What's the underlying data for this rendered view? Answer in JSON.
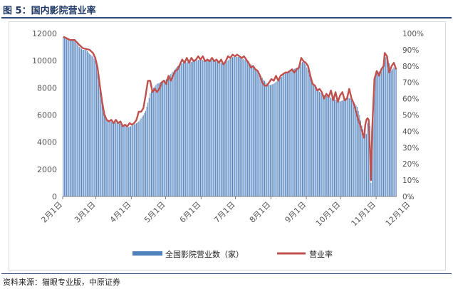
{
  "figure": {
    "title": "图 5：国内影院营业率",
    "source": "资料来源：猫眼专业版，中原证券"
  },
  "colors": {
    "bars": "#4f81bd",
    "line": "#c0504d",
    "axis": "#7f7f7f",
    "title": "#1f3864"
  },
  "chart_data": {
    "type": "bar",
    "x_tick_labels": [
      "2月1日",
      "3月1日",
      "4月1日",
      "5月1日",
      "6月1日",
      "7月1日",
      "8月1日",
      "9月1日",
      "10月1日",
      "11月1日",
      "12月1日"
    ],
    "y_left_ticks": [
      "0",
      "2000",
      "4000",
      "6000",
      "8000",
      "10000",
      "12000"
    ],
    "y_right_ticks": [
      "0%",
      "10%",
      "20%",
      "30%",
      "40%",
      "50%",
      "60%",
      "70%",
      "80%",
      "90%",
      "100%"
    ],
    "ylim_left": [
      0,
      12000
    ],
    "ylim_right": [
      0,
      1
    ],
    "grid": false,
    "legend_position": "bottom",
    "series": [
      {
        "name": "全国影院营业数（家）",
        "type": "bar",
        "axis": "left",
        "points": [
          [
            0,
            11750
          ],
          [
            3,
            11600
          ],
          [
            6,
            11500
          ],
          [
            10,
            11500
          ],
          [
            14,
            11000
          ],
          [
            17,
            10800
          ],
          [
            20,
            10800
          ],
          [
            23,
            10500
          ],
          [
            26,
            10300
          ],
          [
            28,
            10000
          ],
          [
            30,
            9500
          ],
          [
            32,
            8300
          ],
          [
            34,
            7200
          ],
          [
            36,
            6300
          ],
          [
            38,
            5700
          ],
          [
            40,
            5600
          ],
          [
            42,
            5500
          ],
          [
            45,
            5500
          ],
          [
            48,
            5400
          ],
          [
            51,
            5350
          ],
          [
            54,
            5200
          ],
          [
            57,
            5100
          ],
          [
            60,
            5200
          ],
          [
            63,
            5350
          ],
          [
            66,
            5500
          ],
          [
            70,
            6000
          ],
          [
            72,
            6300
          ],
          [
            74,
            6900
          ],
          [
            76,
            7600
          ],
          [
            79,
            8000
          ],
          [
            82,
            8300
          ],
          [
            85,
            8400
          ],
          [
            88,
            8500
          ],
          [
            91,
            8700
          ],
          [
            94,
            9000
          ],
          [
            97,
            9300
          ],
          [
            100,
            9600
          ],
          [
            103,
            9800
          ],
          [
            106,
            9850
          ],
          [
            109,
            9900
          ],
          [
            112,
            9900
          ],
          [
            115,
            10000
          ],
          [
            118,
            10050
          ],
          [
            121,
            10050
          ],
          [
            124,
            10050
          ],
          [
            127,
            10000
          ],
          [
            130,
            10050
          ],
          [
            133,
            9950
          ],
          [
            136,
            9900
          ],
          [
            139,
            9800
          ],
          [
            142,
            9850
          ],
          [
            145,
            10100
          ],
          [
            148,
            10250
          ],
          [
            151,
            10300
          ],
          [
            154,
            10250
          ],
          [
            157,
            10150
          ],
          [
            160,
            10000
          ],
          [
            163,
            9800
          ],
          [
            166,
            9600
          ],
          [
            169,
            9300
          ],
          [
            172,
            9000
          ],
          [
            175,
            8600
          ],
          [
            178,
            8300
          ],
          [
            181,
            8200
          ],
          [
            184,
            8300
          ],
          [
            187,
            8500
          ],
          [
            190,
            8700
          ],
          [
            193,
            9000
          ],
          [
            196,
            9200
          ],
          [
            199,
            9300
          ],
          [
            202,
            9400
          ],
          [
            205,
            9500
          ],
          [
            208,
            9800
          ],
          [
            210,
            10000
          ],
          [
            212,
            9700
          ],
          [
            214,
            9300
          ],
          [
            216,
            8800
          ],
          [
            218,
            8300
          ],
          [
            221,
            8000
          ],
          [
            224,
            7700
          ],
          [
            227,
            7500
          ],
          [
            230,
            7400
          ],
          [
            233,
            7300
          ],
          [
            236,
            7200
          ],
          [
            239,
            7100
          ],
          [
            242,
            7000
          ],
          [
            245,
            7100
          ],
          [
            248,
            7300
          ],
          [
            251,
            7200
          ],
          [
            254,
            6900
          ],
          [
            257,
            6600
          ],
          [
            259,
            6000
          ],
          [
            261,
            5200
          ],
          [
            263,
            4700
          ],
          [
            265,
            4600
          ],
          [
            266,
            5400
          ],
          [
            267,
            5600
          ],
          [
            268,
            5200
          ],
          [
            269,
            1000
          ],
          [
            270,
            4500
          ],
          [
            271,
            7500
          ],
          [
            273,
            9000
          ],
          [
            275,
            9200
          ],
          [
            278,
            9200
          ],
          [
            281,
            10200
          ],
          [
            283,
            10300
          ],
          [
            285,
            9800
          ],
          [
            287,
            9300
          ],
          [
            289,
            9500
          ],
          [
            291,
            9400
          ]
        ]
      },
      {
        "name": "营业率",
        "type": "line",
        "axis": "right",
        "points": [
          [
            0,
            0.98
          ],
          [
            3,
            0.97
          ],
          [
            6,
            0.96
          ],
          [
            10,
            0.96
          ],
          [
            14,
            0.93
          ],
          [
            17,
            0.91
          ],
          [
            20,
            0.905
          ],
          [
            23,
            0.9
          ],
          [
            26,
            0.88
          ],
          [
            28,
            0.85
          ],
          [
            30,
            0.79
          ],
          [
            32,
            0.68
          ],
          [
            34,
            0.58
          ],
          [
            36,
            0.5
          ],
          [
            38,
            0.47
          ],
          [
            40,
            0.46
          ],
          [
            42,
            0.47
          ],
          [
            44,
            0.45
          ],
          [
            46,
            0.47
          ],
          [
            48,
            0.45
          ],
          [
            50,
            0.46
          ],
          [
            52,
            0.43
          ],
          [
            54,
            0.44
          ],
          [
            56,
            0.43
          ],
          [
            58,
            0.45
          ],
          [
            60,
            0.44
          ],
          [
            62,
            0.45
          ],
          [
            64,
            0.47
          ],
          [
            66,
            0.52
          ],
          [
            68,
            0.52
          ],
          [
            70,
            0.54
          ],
          [
            72,
            0.62
          ],
          [
            74,
            0.71
          ],
          [
            76,
            0.71
          ],
          [
            78,
            0.64
          ],
          [
            80,
            0.66
          ],
          [
            82,
            0.64
          ],
          [
            84,
            0.66
          ],
          [
            86,
            0.7
          ],
          [
            88,
            0.71
          ],
          [
            90,
            0.69
          ],
          [
            92,
            0.74
          ],
          [
            94,
            0.71
          ],
          [
            96,
            0.74
          ],
          [
            98,
            0.77
          ],
          [
            100,
            0.78
          ],
          [
            102,
            0.81
          ],
          [
            104,
            0.84
          ],
          [
            106,
            0.82
          ],
          [
            108,
            0.85
          ],
          [
            110,
            0.82
          ],
          [
            112,
            0.85
          ],
          [
            114,
            0.83
          ],
          [
            116,
            0.84
          ],
          [
            118,
            0.86
          ],
          [
            120,
            0.84
          ],
          [
            122,
            0.86
          ],
          [
            124,
            0.83
          ],
          [
            126,
            0.84
          ],
          [
            128,
            0.83
          ],
          [
            130,
            0.85
          ],
          [
            132,
            0.83
          ],
          [
            134,
            0.84
          ],
          [
            136,
            0.82
          ],
          [
            138,
            0.84
          ],
          [
            140,
            0.81
          ],
          [
            142,
            0.83
          ],
          [
            144,
            0.86
          ],
          [
            146,
            0.85
          ],
          [
            148,
            0.87
          ],
          [
            150,
            0.86
          ],
          [
            152,
            0.87
          ],
          [
            154,
            0.86
          ],
          [
            156,
            0.85
          ],
          [
            158,
            0.86
          ],
          [
            160,
            0.84
          ],
          [
            162,
            0.82
          ],
          [
            164,
            0.79
          ],
          [
            166,
            0.8
          ],
          [
            168,
            0.78
          ],
          [
            170,
            0.77
          ],
          [
            172,
            0.74
          ],
          [
            174,
            0.7
          ],
          [
            176,
            0.68
          ],
          [
            178,
            0.68
          ],
          [
            180,
            0.7
          ],
          [
            182,
            0.72
          ],
          [
            184,
            0.71
          ],
          [
            186,
            0.74
          ],
          [
            188,
            0.71
          ],
          [
            190,
            0.74
          ],
          [
            192,
            0.75
          ],
          [
            194,
            0.76
          ],
          [
            196,
            0.76
          ],
          [
            198,
            0.77
          ],
          [
            200,
            0.78
          ],
          [
            202,
            0.76
          ],
          [
            204,
            0.78
          ],
          [
            206,
            0.79
          ],
          [
            208,
            0.85
          ],
          [
            210,
            0.83
          ],
          [
            212,
            0.82
          ],
          [
            214,
            0.8
          ],
          [
            216,
            0.74
          ],
          [
            218,
            0.69
          ],
          [
            220,
            0.68
          ],
          [
            222,
            0.65
          ],
          [
            224,
            0.66
          ],
          [
            226,
            0.64
          ],
          [
            228,
            0.6
          ],
          [
            230,
            0.63
          ],
          [
            232,
            0.61
          ],
          [
            234,
            0.65
          ],
          [
            236,
            0.59
          ],
          [
            238,
            0.64
          ],
          [
            240,
            0.58
          ],
          [
            242,
            0.62
          ],
          [
            244,
            0.64
          ],
          [
            246,
            0.59
          ],
          [
            248,
            0.6
          ],
          [
            250,
            0.66
          ],
          [
            252,
            0.6
          ],
          [
            254,
            0.57
          ],
          [
            256,
            0.52
          ],
          [
            258,
            0.47
          ],
          [
            260,
            0.43
          ],
          [
            262,
            0.38
          ],
          [
            263,
            0.36
          ],
          [
            264,
            0.44
          ],
          [
            265,
            0.47
          ],
          [
            266,
            0.48
          ],
          [
            267,
            0.47
          ],
          [
            268,
            0.3
          ],
          [
            269,
            0.1
          ],
          [
            270,
            0.4
          ],
          [
            272,
            0.72
          ],
          [
            274,
            0.77
          ],
          [
            276,
            0.74
          ],
          [
            278,
            0.78
          ],
          [
            280,
            0.8
          ],
          [
            281,
            0.88
          ],
          [
            283,
            0.86
          ],
          [
            285,
            0.76
          ],
          [
            287,
            0.8
          ],
          [
            289,
            0.82
          ],
          [
            291,
            0.78
          ]
        ]
      }
    ]
  }
}
